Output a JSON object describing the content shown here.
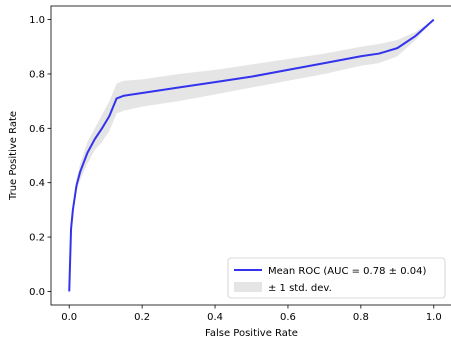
{
  "chart_data": {
    "type": "line",
    "xlabel": "False Positive Rate",
    "ylabel": "True Positive Rate",
    "xlim": [
      -0.05,
      1.05
    ],
    "ylim": [
      -0.05,
      1.05
    ],
    "x_ticks": [
      "0.0",
      "0.2",
      "0.4",
      "0.6",
      "0.8",
      "1.0"
    ],
    "y_ticks": [
      "0.0",
      "0.2",
      "0.4",
      "0.6",
      "0.8",
      "1.0"
    ],
    "grid": false,
    "legend_position": "lower-right",
    "series": [
      {
        "name": "Mean ROC (AUC = 0.78 ± 0.04)",
        "color": "#3333ee",
        "x": [
          0.0,
          0.005,
          0.01,
          0.02,
          0.03,
          0.05,
          0.07,
          0.09,
          0.11,
          0.13,
          0.15,
          0.2,
          0.3,
          0.4,
          0.5,
          0.6,
          0.7,
          0.8,
          0.85,
          0.9,
          0.95,
          1.0
        ],
        "y": [
          0.0,
          0.23,
          0.3,
          0.39,
          0.44,
          0.51,
          0.56,
          0.6,
          0.645,
          0.71,
          0.72,
          0.73,
          0.75,
          0.77,
          0.79,
          0.815,
          0.84,
          0.865,
          0.875,
          0.895,
          0.94,
          1.0
        ]
      }
    ],
    "bands": [
      {
        "name": "± 1 std. dev.",
        "color": "#d3d3d3",
        "x": [
          0.0,
          0.005,
          0.01,
          0.02,
          0.03,
          0.05,
          0.07,
          0.09,
          0.11,
          0.13,
          0.15,
          0.2,
          0.3,
          0.4,
          0.5,
          0.6,
          0.7,
          0.8,
          0.85,
          0.9,
          0.95,
          1.0
        ],
        "upper": [
          0.0,
          0.25,
          0.32,
          0.41,
          0.47,
          0.55,
          0.6,
          0.65,
          0.7,
          0.765,
          0.775,
          0.78,
          0.8,
          0.815,
          0.835,
          0.855,
          0.875,
          0.9,
          0.91,
          0.925,
          0.955,
          1.0
        ],
        "lower": [
          0.0,
          0.21,
          0.28,
          0.37,
          0.41,
          0.47,
          0.52,
          0.55,
          0.59,
          0.655,
          0.665,
          0.68,
          0.7,
          0.725,
          0.75,
          0.775,
          0.8,
          0.83,
          0.84,
          0.865,
          0.925,
          1.0
        ]
      }
    ]
  }
}
